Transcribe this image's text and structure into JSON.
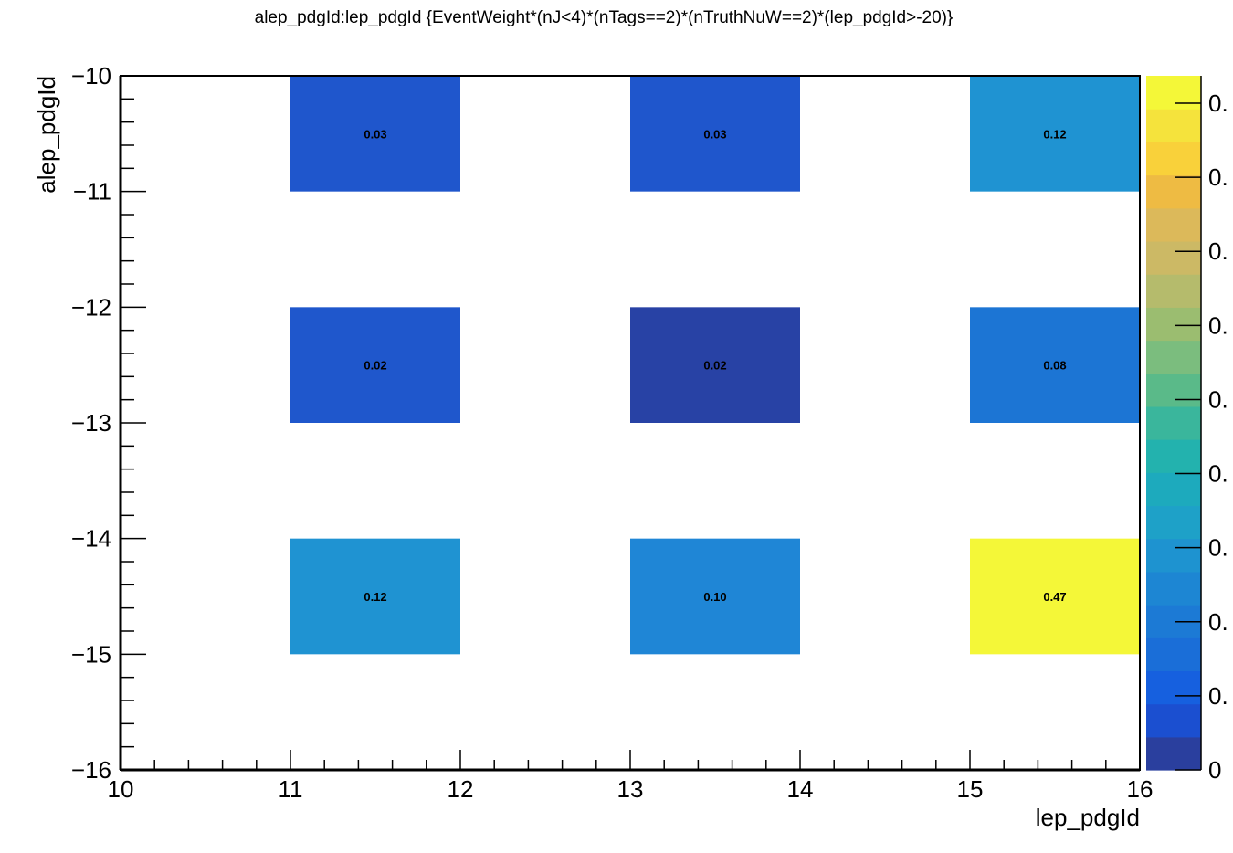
{
  "chart_data": {
    "type": "heatmap",
    "title": "alep_pdgId:lep_pdgId {EventWeight*(nJ<4)*(nTags==2)*(nTruthNuW==2)*(lep_pdgId>-20)}",
    "xlabel": "lep_pdgId",
    "ylabel": "alep_pdgId",
    "xlim": [
      10,
      16
    ],
    "ylim": [
      -16,
      -10
    ],
    "x_ticks": [
      "10",
      "11",
      "12",
      "13",
      "14",
      "15",
      "16"
    ],
    "y_ticks": [
      "−10",
      "−11",
      "−12",
      "−13",
      "−14",
      "−15",
      "−16"
    ],
    "colorbar_ticks": [
      "0.",
      "0.",
      "0.",
      "0.",
      "0.",
      "0.",
      "0.",
      "0.",
      "0.",
      "0"
    ],
    "cells": [
      {
        "x": [
          11,
          12
        ],
        "y": [
          -11,
          -10
        ],
        "value": "0.03",
        "color": "#1f56cc"
      },
      {
        "x": [
          13,
          14
        ],
        "y": [
          -11,
          -10
        ],
        "value": "0.03",
        "color": "#1f56cc"
      },
      {
        "x": [
          15,
          16
        ],
        "y": [
          -11,
          -10
        ],
        "value": "0.12",
        "color": "#1f93d2"
      },
      {
        "x": [
          11,
          12
        ],
        "y": [
          -13,
          -12
        ],
        "value": "0.02",
        "color": "#1f57cc"
      },
      {
        "x": [
          13,
          14
        ],
        "y": [
          -13,
          -12
        ],
        "value": "0.02",
        "color": "#2842a5"
      },
      {
        "x": [
          15,
          16
        ],
        "y": [
          -13,
          -12
        ],
        "value": "0.08",
        "color": "#1c75d4"
      },
      {
        "x": [
          11,
          12
        ],
        "y": [
          -15,
          -14
        ],
        "value": "0.12",
        "color": "#1f93d2"
      },
      {
        "x": [
          13,
          14
        ],
        "y": [
          -15,
          -14
        ],
        "value": "0.10",
        "color": "#1f86d6"
      },
      {
        "x": [
          15,
          16
        ],
        "y": [
          -15,
          -14
        ],
        "value": "0.47",
        "color": "#f4f738"
      }
    ],
    "palette": [
      "#2a3f9e",
      "#1b4fd0",
      "#1660df",
      "#1a6ed8",
      "#1c7ad5",
      "#1d86d3",
      "#1e93d0",
      "#1ea1c8",
      "#1daabd",
      "#23b2ae",
      "#3ab69c",
      "#5aba89",
      "#7bbd7e",
      "#9bbd70",
      "#b5bb6c",
      "#ccb965",
      "#dcb95a",
      "#eebb43",
      "#f9d13a",
      "#f5e33c",
      "#f4f738"
    ]
  }
}
